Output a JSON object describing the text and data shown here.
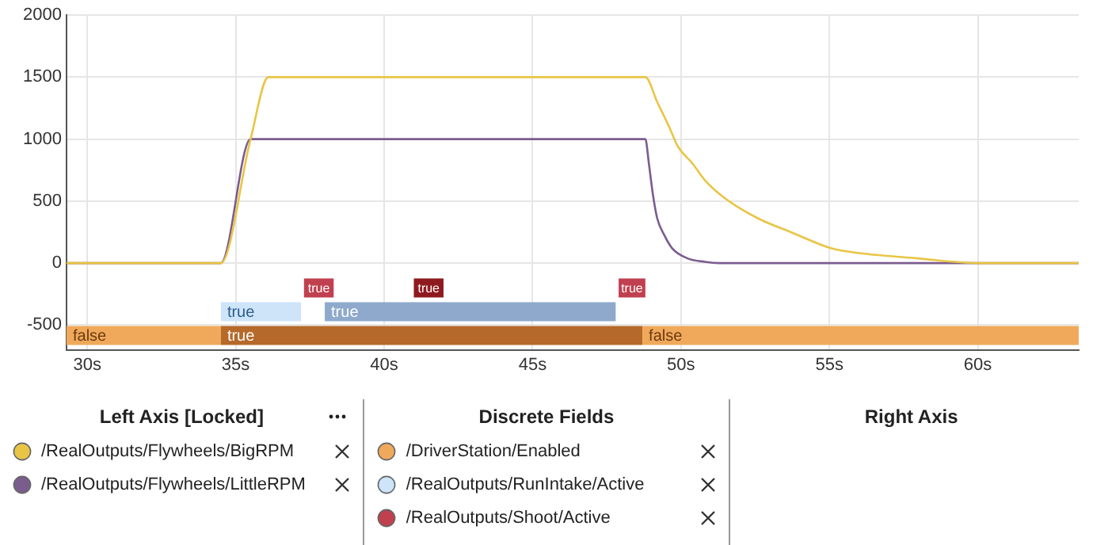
{
  "chart_data": {
    "type": "line",
    "x": [
      29.3,
      34.5,
      35.5,
      36.1,
      48.7,
      48.8,
      48.92,
      49.05,
      49.2,
      49.45,
      49.6,
      49.7,
      49.9,
      50.2,
      50.4,
      50.8,
      51.3,
      51.5,
      52.6,
      53.7,
      55.05,
      56,
      57.9,
      60,
      63.4
    ],
    "series": [
      {
        "name": "/RealOutputs/Flywheels/BigRPM",
        "color": "#e9c546",
        "values": [
          0,
          0,
          1000,
          1500,
          1500,
          1500,
          null,
          null,
          1300,
          null,
          1100,
          null,
          940,
          null,
          800,
          670,
          null,
          520,
          360,
          250,
          120,
          80,
          40,
          0,
          0
        ]
      },
      {
        "name": "/RealOutputs/Flywheels/LittleRPM",
        "color": "#7b5c8f",
        "values": [
          0,
          0,
          1000,
          1000,
          1000,
          1000,
          800,
          560,
          360,
          220,
          null,
          120,
          null,
          40,
          null,
          10,
          0,
          null,
          0,
          0,
          0,
          0,
          0,
          0,
          0
        ]
      }
    ],
    "xlim": [
      29.3,
      63.4
    ],
    "xticks": [
      {
        "value": 30,
        "label": "30s"
      },
      {
        "value": 35,
        "label": "35s"
      },
      {
        "value": 40,
        "label": "40s"
      },
      {
        "value": 45,
        "label": "45s"
      },
      {
        "value": 50,
        "label": "50s"
      },
      {
        "value": 55,
        "label": "55s"
      },
      {
        "value": 60,
        "label": "60s"
      }
    ],
    "ylim": [
      -700,
      2000
    ],
    "yticks": [
      2000,
      1500,
      1000,
      500,
      0,
      -500
    ],
    "grid": true,
    "marker": "none",
    "line_style": "solid",
    "legend": "bottom",
    "bands": [
      {
        "axis": "x",
        "from": 29.3,
        "to": 34.5,
        "label": "false",
        "color": "#f0a95b"
      },
      {
        "axis": "x",
        "from": 34.5,
        "to": 48.7,
        "label": "true",
        "color": "#b5692a"
      },
      {
        "axis": "x",
        "from": 48.7,
        "to": 63.4,
        "label": "false",
        "color": "#f0a95b"
      },
      {
        "axis": "x",
        "from": 34.5,
        "to": 37.2,
        "label": "true",
        "color": "#cde4f9"
      },
      {
        "axis": "x",
        "from": 38.0,
        "to": 47.8,
        "label": "true",
        "color": "#8ea9cc"
      },
      {
        "axis": "x",
        "from": 37.3,
        "to": 38.3,
        "label": "true",
        "color": "#c0404f"
      },
      {
        "axis": "x",
        "from": 41.0,
        "to": 42.0,
        "label": "true",
        "color": "#8e1a1f"
      },
      {
        "axis": "x",
        "from": 47.9,
        "to": 48.8,
        "label": "true",
        "color": "#c0404f"
      }
    ],
    "annotations": [
      "Left Axis [Locked]",
      "Discrete Fields",
      "Right Axis",
      "/DriverStation/Enabled",
      "/RealOutputs/RunIntake/Active",
      "/RealOutputs/Shoot/Active"
    ]
  }
}
